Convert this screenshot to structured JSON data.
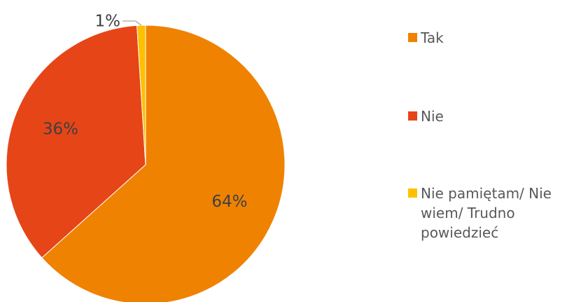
{
  "chart_data": {
    "type": "pie",
    "slices": [
      {
        "label": "Tak",
        "value": 64,
        "display": "64%",
        "color": "#EF8200"
      },
      {
        "label": "Nie",
        "value": 36,
        "display": "36%",
        "color": "#E64518"
      },
      {
        "label": "Nie pamiętam/ Nie wiem/ Trudno powiedzieć",
        "value": 1,
        "display": "1%",
        "color": "#FFC000"
      }
    ],
    "legend_position": "right",
    "data_label_color": "#404040",
    "leader_line_color": "#A6A6A6"
  },
  "legend": {
    "items": [
      {
        "label": "Tak",
        "color": "#EF8200"
      },
      {
        "label": "Nie",
        "color": "#E64518"
      },
      {
        "label": "Nie pamiętam/ Nie wiem/ Trudno powiedzieć",
        "color": "#FFC000"
      }
    ]
  }
}
